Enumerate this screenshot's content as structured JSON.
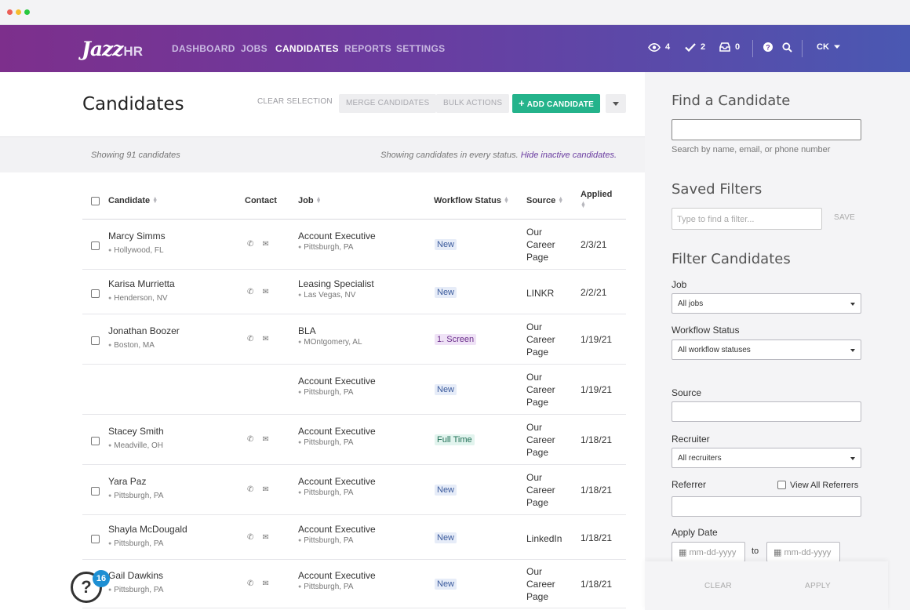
{
  "chrome": {
    "dots": [
      "#ec5f57",
      "#f5bd2e",
      "#28c840"
    ]
  },
  "nav": {
    "logo_main": "Jazz",
    "logo_hr": "HR",
    "items": [
      "DASHBOARD",
      "JOBS",
      "CANDIDATES",
      "REPORTS",
      "SETTINGS"
    ],
    "active": "CANDIDATES",
    "views_count": "4",
    "tasks_count": "2",
    "inbox_count": "0",
    "user_initials": "CK"
  },
  "toolbar": {
    "title": "Candidates",
    "clear_selection": "CLEAR SELECTION",
    "merge": "MERGE CANDIDATES",
    "bulk": "BULK ACTIONS",
    "add": "ADD CANDIDATE"
  },
  "status": {
    "showing": "Showing 91 candidates",
    "every_status": "Showing candidates in every status.",
    "hide_inactive": "Hide inactive candidates."
  },
  "columns": {
    "candidate": "Candidate",
    "contact": "Contact",
    "job": "Job",
    "workflow": "Workflow Status",
    "source": "Source",
    "applied": "Applied"
  },
  "rows": [
    {
      "name": "Marcy Simms",
      "location": "Hollywood, FL",
      "job": "Account Executive",
      "job_location": "Pittsburgh, PA",
      "status": "New",
      "source": "Our Career Page",
      "applied": "2/3/21"
    },
    {
      "name": "Karisa Murrietta",
      "location": "Henderson, NV",
      "job": "Leasing Specialist",
      "job_location": "Las Vegas, NV",
      "status": "New",
      "source": "LINKR",
      "applied": "2/2/21"
    },
    {
      "name": "Jonathan Boozer",
      "location": "Boston, MA",
      "job": "BLA",
      "job_location": "MOntgomery, AL",
      "status": "1. Screen",
      "source": "Our Career Page",
      "applied": "1/19/21"
    },
    {
      "name": "",
      "location": "",
      "job": "Account Executive",
      "job_location": "Pittsburgh, PA",
      "status": "New",
      "source": "Our Career Page",
      "applied": "1/19/21"
    },
    {
      "name": "Stacey Smith",
      "location": "Meadville, OH",
      "job": "Account Executive",
      "job_location": "Pittsburgh, PA",
      "status": "Full Time",
      "source": "Our Career Page",
      "applied": "1/18/21"
    },
    {
      "name": "Yara Paz",
      "location": "Pittsburgh, PA",
      "job": "Account Executive",
      "job_location": "Pittsburgh, PA",
      "status": "New",
      "source": "Our Career Page",
      "applied": "1/18/21"
    },
    {
      "name": "Shayla McDougald",
      "location": "Pittsburgh, PA",
      "job": "Account Executive",
      "job_location": "Pittsburgh, PA",
      "status": "New",
      "source": "LinkedIn",
      "applied": "1/18/21"
    },
    {
      "name": "Gail Dawkins",
      "location": "Pittsburgh, PA",
      "job": "Account Executive",
      "job_location": "Pittsburgh, PA",
      "status": "New",
      "source": "Our Career Page",
      "applied": "1/18/21"
    }
  ],
  "status_colors": {
    "New": {
      "bg": "#e6ecf8",
      "fg": "#3a5a9c"
    },
    "1. Screen": {
      "bg": "#efe2f6",
      "fg": "#6a2d8a"
    },
    "Full Time": {
      "bg": "#e2f4ee",
      "fg": "#1f6e54"
    }
  },
  "sidebar": {
    "find_title": "Find a Candidate",
    "find_hint": "Search by name, email, or phone number",
    "saved_title": "Saved Filters",
    "saved_placeholder": "Type to find a filter...",
    "save": "SAVE",
    "filter_title": "Filter Candidates",
    "job_label": "Job",
    "job_value": "All jobs",
    "workflow_label": "Workflow Status",
    "workflow_value": "All workflow statuses",
    "source_label": "Source",
    "recruiter_label": "Recruiter",
    "recruiter_value": "All recruiters",
    "referrer_label": "Referrer",
    "view_all_referrers": "View All Referrers",
    "apply_date_label": "Apply Date",
    "date_placeholder": "mm-dd-yyyy",
    "to": "to",
    "clear": "CLEAR",
    "apply": "APPLY"
  },
  "help": {
    "badge": "16"
  },
  "accent": {
    "green": "#24b38b",
    "purple": "#6a3ca0"
  }
}
